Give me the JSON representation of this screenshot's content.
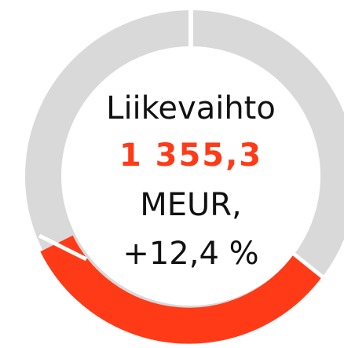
{
  "title": "Liikevaihto",
  "value": "1 355,3",
  "unit": "MEUR,",
  "change": "+12,4 %"
}
